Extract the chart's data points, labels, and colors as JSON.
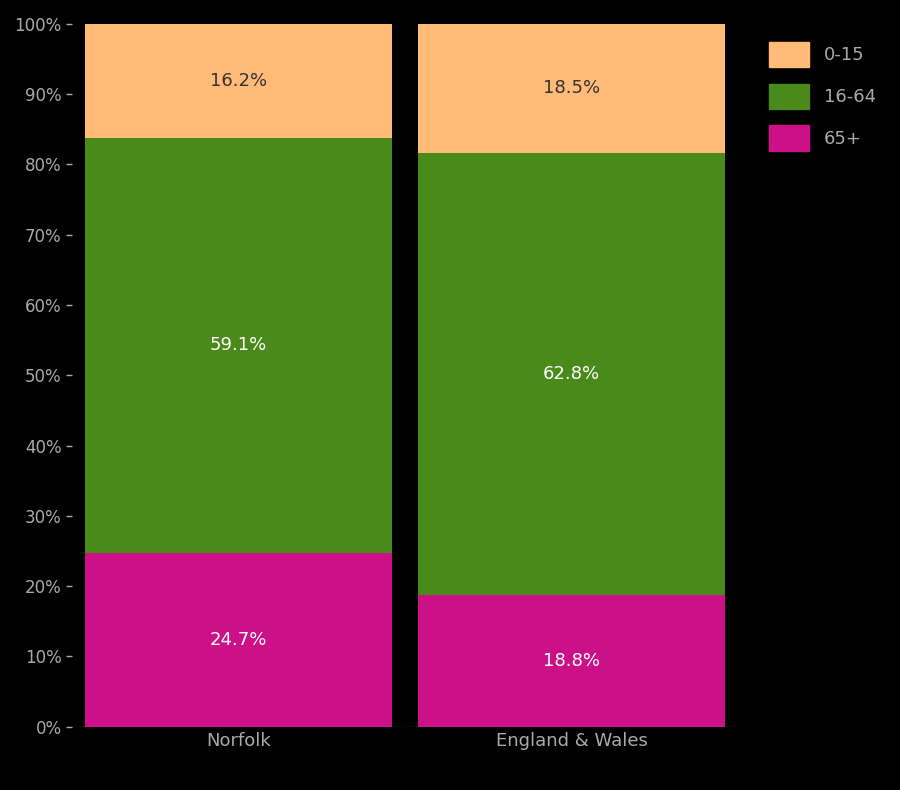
{
  "categories": [
    "Norfolk",
    "England & Wales"
  ],
  "segments": {
    "65+": [
      24.7,
      18.8
    ],
    "16-64": [
      59.1,
      62.8
    ],
    "0-15": [
      16.2,
      18.5
    ]
  },
  "colors": {
    "0-15": "#FFBB77",
    "16-64": "#4A8A1A",
    "65+": "#CC1188"
  },
  "label_colors": {
    "0-15": "#333333",
    "16-64": "#FFFFFF",
    "65+": "#FFFFFF"
  },
  "background_color": "#000000",
  "tick_label_color": "#AAAAAA",
  "legend_text_color": "#AAAAAA",
  "divider_color": "#000000",
  "ylim": [
    0,
    100
  ],
  "figsize": [
    9.0,
    7.9
  ],
  "dpi": 100
}
